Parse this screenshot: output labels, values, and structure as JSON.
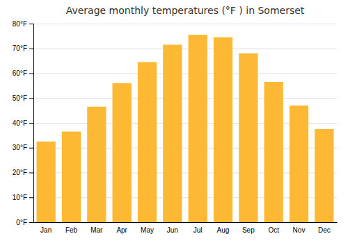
{
  "chart_data": {
    "type": "bar",
    "title": "Average monthly temperatures (°F ) in Somerset",
    "categories": [
      "Jan",
      "Feb",
      "Mar",
      "Apr",
      "May",
      "Jun",
      "Jul",
      "Aug",
      "Sep",
      "Oct",
      "Nov",
      "Dec"
    ],
    "values": [
      32.5,
      36.5,
      46.5,
      56,
      64.5,
      71.5,
      75.5,
      74.5,
      68,
      56.5,
      47,
      37.5
    ],
    "color": "#FDB933",
    "ylim": [
      0,
      80
    ],
    "yticks": [
      {
        "value": 0,
        "label": "0°F"
      },
      {
        "value": 10,
        "label": "10°F"
      },
      {
        "value": 20,
        "label": "20°F"
      },
      {
        "value": 30,
        "label": "30°F"
      },
      {
        "value": 40,
        "label": "40°F"
      },
      {
        "value": 50,
        "label": "50°F"
      },
      {
        "value": 60,
        "label": "60°F"
      },
      {
        "value": 70,
        "label": "70°F"
      },
      {
        "value": 80,
        "label": "80°F"
      }
    ],
    "grid": true
  }
}
